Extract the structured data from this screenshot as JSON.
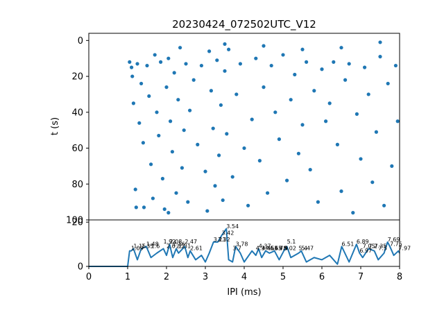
{
  "chart_data": [
    {
      "type": "scatter",
      "title": "20230424_072502UTC_V12",
      "xlabel": "",
      "ylabel": "t (s)",
      "xlim": [
        0,
        8
      ],
      "ylim": [
        100,
        -4
      ],
      "y_inverted": true,
      "yticks": [
        0,
        20,
        40,
        60,
        80,
        100
      ],
      "marker_color": "#1f77b4",
      "points": [
        [
          1.05,
          12
        ],
        [
          1.1,
          15
        ],
        [
          1.12,
          20
        ],
        [
          1.15,
          35
        ],
        [
          1.2,
          83
        ],
        [
          1.25,
          13
        ],
        [
          1.3,
          46
        ],
        [
          1.35,
          24
        ],
        [
          1.4,
          57
        ],
        [
          1.42,
          93
        ],
        [
          1.5,
          14
        ],
        [
          1.55,
          31
        ],
        [
          1.6,
          69
        ],
        [
          1.65,
          88
        ],
        [
          1.7,
          8
        ],
        [
          1.75,
          40
        ],
        [
          1.8,
          53
        ],
        [
          1.85,
          12
        ],
        [
          1.9,
          77
        ],
        [
          1.95,
          94
        ],
        [
          2.0,
          26
        ],
        [
          2.05,
          10
        ],
        [
          2.1,
          45
        ],
        [
          2.15,
          62
        ],
        [
          2.2,
          18
        ],
        [
          2.25,
          85
        ],
        [
          2.3,
          33
        ],
        [
          2.35,
          4
        ],
        [
          2.4,
          71
        ],
        [
          2.45,
          50
        ],
        [
          2.5,
          13
        ],
        [
          2.55,
          90
        ],
        [
          2.6,
          39
        ],
        [
          2.7,
          22
        ],
        [
          2.8,
          58
        ],
        [
          2.9,
          14
        ],
        [
          3.0,
          73
        ],
        [
          3.05,
          95
        ],
        [
          3.1,
          6
        ],
        [
          3.15,
          28
        ],
        [
          3.2,
          49
        ],
        [
          3.25,
          81
        ],
        [
          3.3,
          11
        ],
        [
          3.35,
          64
        ],
        [
          3.4,
          36
        ],
        [
          3.45,
          89
        ],
        [
          3.5,
          17
        ],
        [
          3.55,
          52
        ],
        [
          3.6,
          5
        ],
        [
          3.7,
          76
        ],
        [
          3.8,
          30
        ],
        [
          3.9,
          13
        ],
        [
          4.0,
          60
        ],
        [
          4.1,
          92
        ],
        [
          4.2,
          44
        ],
        [
          4.3,
          10
        ],
        [
          4.4,
          67
        ],
        [
          4.5,
          26
        ],
        [
          4.6,
          85
        ],
        [
          4.7,
          14
        ],
        [
          4.8,
          40
        ],
        [
          4.9,
          55
        ],
        [
          5.0,
          8
        ],
        [
          5.1,
          78
        ],
        [
          5.2,
          33
        ],
        [
          5.3,
          19
        ],
        [
          5.4,
          63
        ],
        [
          5.5,
          47
        ],
        [
          5.6,
          12
        ],
        [
          5.7,
          72
        ],
        [
          5.8,
          28
        ],
        [
          5.9,
          90
        ],
        [
          6.0,
          16
        ],
        [
          6.1,
          45
        ],
        [
          6.2,
          35
        ],
        [
          6.3,
          12
        ],
        [
          6.4,
          58
        ],
        [
          6.5,
          84
        ],
        [
          6.6,
          22
        ],
        [
          6.7,
          13
        ],
        [
          6.8,
          96
        ],
        [
          6.9,
          41
        ],
        [
          7.0,
          66
        ],
        [
          7.1,
          15
        ],
        [
          7.2,
          30
        ],
        [
          7.3,
          79
        ],
        [
          7.4,
          51
        ],
        [
          7.5,
          9
        ],
        [
          7.6,
          92
        ],
        [
          7.7,
          24
        ],
        [
          7.8,
          70
        ],
        [
          7.9,
          14
        ],
        [
          7.95,
          45
        ],
        [
          1.22,
          93
        ],
        [
          2.05,
          96
        ],
        [
          3.5,
          2
        ],
        [
          4.5,
          3
        ],
        [
          5.5,
          5
        ],
        [
          6.5,
          4
        ],
        [
          7.5,
          1
        ]
      ]
    },
    {
      "type": "line",
      "title": "",
      "xlabel": "IPI (ms)",
      "ylabel": "",
      "xlim": [
        0,
        8
      ],
      "ylim": [
        0,
        21
      ],
      "xticks": [
        0,
        1,
        2,
        3,
        4,
        5,
        6,
        7,
        8
      ],
      "yticks": [
        0,
        20
      ],
      "line_color": "#1f77b4",
      "x": [
        0,
        1,
        1.05,
        1.09,
        1.15,
        1.25,
        1.35,
        1.48,
        1.6,
        1.75,
        1.92,
        2.0,
        2.08,
        2.16,
        2.25,
        2.31,
        2.47,
        2.55,
        2.61,
        2.75,
        2.9,
        3.0,
        3.1,
        3.21,
        3.32,
        3.42,
        3.54,
        3.6,
        3.7,
        3.78,
        3.9,
        4.0,
        4.2,
        4.3,
        4.37,
        4.45,
        4.55,
        4.65,
        4.78,
        4.9,
        5.02,
        5.1,
        5.2,
        5.4,
        5.47,
        5.6,
        5.8,
        6.0,
        6.2,
        6.4,
        6.51,
        6.7,
        6.89,
        6.97,
        7.05,
        7.2,
        7.35,
        7.45,
        7.6,
        7.69,
        7.75,
        7.85,
        7.97,
        8.0
      ],
      "y": [
        0,
        0,
        7,
        7,
        8,
        3,
        8,
        9,
        4,
        6,
        8,
        5,
        10,
        4,
        8,
        6,
        9,
        4,
        7,
        3,
        5,
        2,
        6,
        11,
        11,
        14,
        17,
        3,
        2,
        9,
        6,
        2,
        7,
        5,
        8,
        4,
        7,
        6,
        7,
        3,
        7,
        9,
        4,
        6,
        7,
        2,
        4,
        3,
        5,
        1,
        9,
        2,
        10,
        6,
        4,
        8,
        7,
        3,
        6,
        11,
        9,
        5,
        7,
        6
      ],
      "annotations": [
        {
          "x": 1.09,
          "y": 7,
          "text": "1.09"
        },
        {
          "x": 1.15,
          "y": 8,
          "text": "1.15"
        },
        {
          "x": 1.35,
          "y": 8,
          "text": "1.35"
        },
        {
          "x": 1.48,
          "y": 9,
          "text": "1.48"
        },
        {
          "x": 1.6,
          "y": 8,
          "text": "1.6"
        },
        {
          "x": 1.92,
          "y": 10,
          "text": "1.92"
        },
        {
          "x": 2.0,
          "y": 8,
          "text": "2.0"
        },
        {
          "x": 2.08,
          "y": 10,
          "text": "2.08"
        },
        {
          "x": 2.16,
          "y": 9,
          "text": "2.16"
        },
        {
          "x": 2.25,
          "y": 8,
          "text": "2.2"
        },
        {
          "x": 2.31,
          "y": 8,
          "text": "2.31"
        },
        {
          "x": 2.47,
          "y": 10,
          "text": "2.47"
        },
        {
          "x": 2.61,
          "y": 7,
          "text": "2.61"
        },
        {
          "x": 3.21,
          "y": 11,
          "text": "3.21"
        },
        {
          "x": 3.32,
          "y": 11,
          "text": "3.32"
        },
        {
          "x": 3.42,
          "y": 14,
          "text": "3.42"
        },
        {
          "x": 3.54,
          "y": 17,
          "text": "3.54"
        },
        {
          "x": 3.7,
          "y": 7,
          "text": "3.7"
        },
        {
          "x": 3.78,
          "y": 9,
          "text": "3.78"
        },
        {
          "x": 4.3,
          "y": 7,
          "text": "4.3"
        },
        {
          "x": 4.37,
          "y": 8,
          "text": "4.37"
        },
        {
          "x": 4.45,
          "y": 7,
          "text": "4.45"
        },
        {
          "x": 4.55,
          "y": 7,
          "text": "4.55"
        },
        {
          "x": 4.65,
          "y": 7,
          "text": "4.65"
        },
        {
          "x": 4.78,
          "y": 7,
          "text": "4.78"
        },
        {
          "x": 4.9,
          "y": 7,
          "text": "4.9"
        },
        {
          "x": 5.02,
          "y": 7,
          "text": "5.02"
        },
        {
          "x": 5.1,
          "y": 10,
          "text": "5.1"
        },
        {
          "x": 5.4,
          "y": 7,
          "text": "5.4"
        },
        {
          "x": 5.47,
          "y": 7,
          "text": "5.47"
        },
        {
          "x": 6.51,
          "y": 9,
          "text": "6.51"
        },
        {
          "x": 6.89,
          "y": 10,
          "text": "6.89"
        },
        {
          "x": 6.97,
          "y": 6,
          "text": "6.97"
        },
        {
          "x": 7.05,
          "y": 8,
          "text": "7.05"
        },
        {
          "x": 7.2,
          "y": 8,
          "text": "7.2"
        },
        {
          "x": 7.35,
          "y": 8,
          "text": "7.35"
        },
        {
          "x": 7.45,
          "y": 7,
          "text": "7.5"
        },
        {
          "x": 7.69,
          "y": 11,
          "text": "7.69"
        },
        {
          "x": 7.75,
          "y": 9,
          "text": "7.75"
        },
        {
          "x": 7.97,
          "y": 7,
          "text": "7.97"
        }
      ]
    }
  ]
}
